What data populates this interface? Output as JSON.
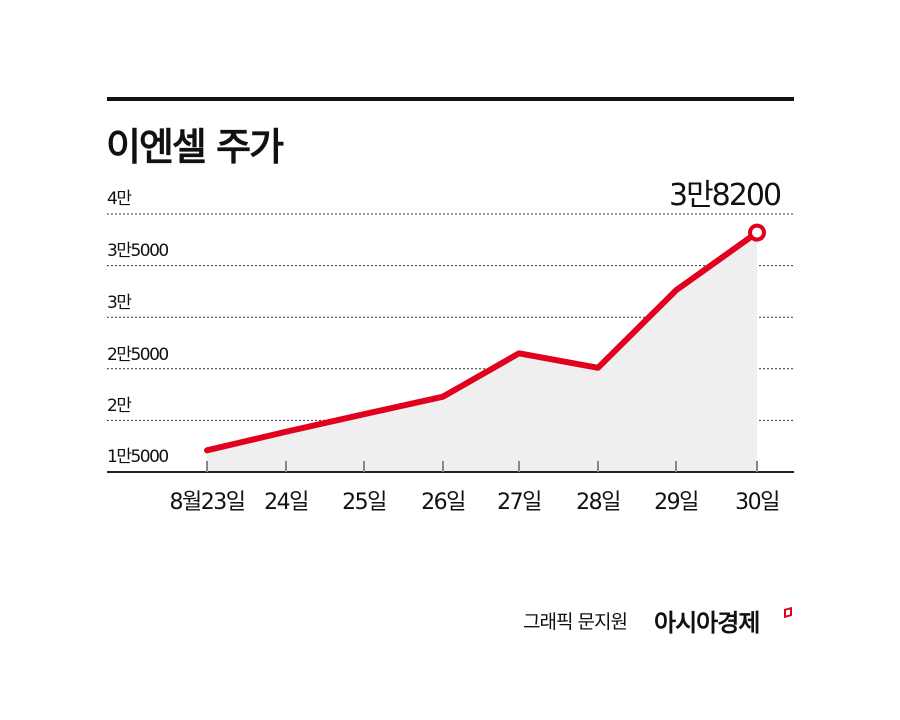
{
  "header": {
    "title": "이엔셀 주가"
  },
  "y_axis": {
    "labels": [
      "4만",
      "3만5000",
      "3만",
      "2만5000",
      "2만",
      "1만5000"
    ]
  },
  "x_axis": {
    "labels": [
      "8월23일",
      "24일",
      "25일",
      "26일",
      "27일",
      "28일",
      "29일",
      "30일"
    ]
  },
  "annotation": {
    "last_value_label": "3만8200"
  },
  "footer": {
    "credit": "그래픽 문지원",
    "brand": "아시아경제"
  },
  "colors": {
    "line": "#e1001e",
    "area_fill": "#efefef",
    "grid": "#333333",
    "axis": "#222222"
  },
  "chart_data": {
    "type": "area",
    "title": "이엔셀 주가",
    "xlabel": "",
    "ylabel": "",
    "categories": [
      "8월23일",
      "24일",
      "25일",
      "26일",
      "27일",
      "28일",
      "29일",
      "30일"
    ],
    "series": [
      {
        "name": "이엔셀 주가",
        "values": [
          17100,
          18900,
          20600,
          22300,
          26500,
          25100,
          32600,
          38200
        ]
      }
    ],
    "ylim": [
      15000,
      40000
    ],
    "yticks": [
      15000,
      20000,
      25000,
      30000,
      35000,
      40000
    ],
    "ytick_labels": [
      "1만5000",
      "2만",
      "2만5000",
      "3만",
      "3만5000",
      "4만"
    ],
    "grid": "horizontal dotted",
    "legend": "none",
    "annotations": [
      {
        "x": "30일",
        "y": 38200,
        "text": "3만8200"
      }
    ]
  }
}
